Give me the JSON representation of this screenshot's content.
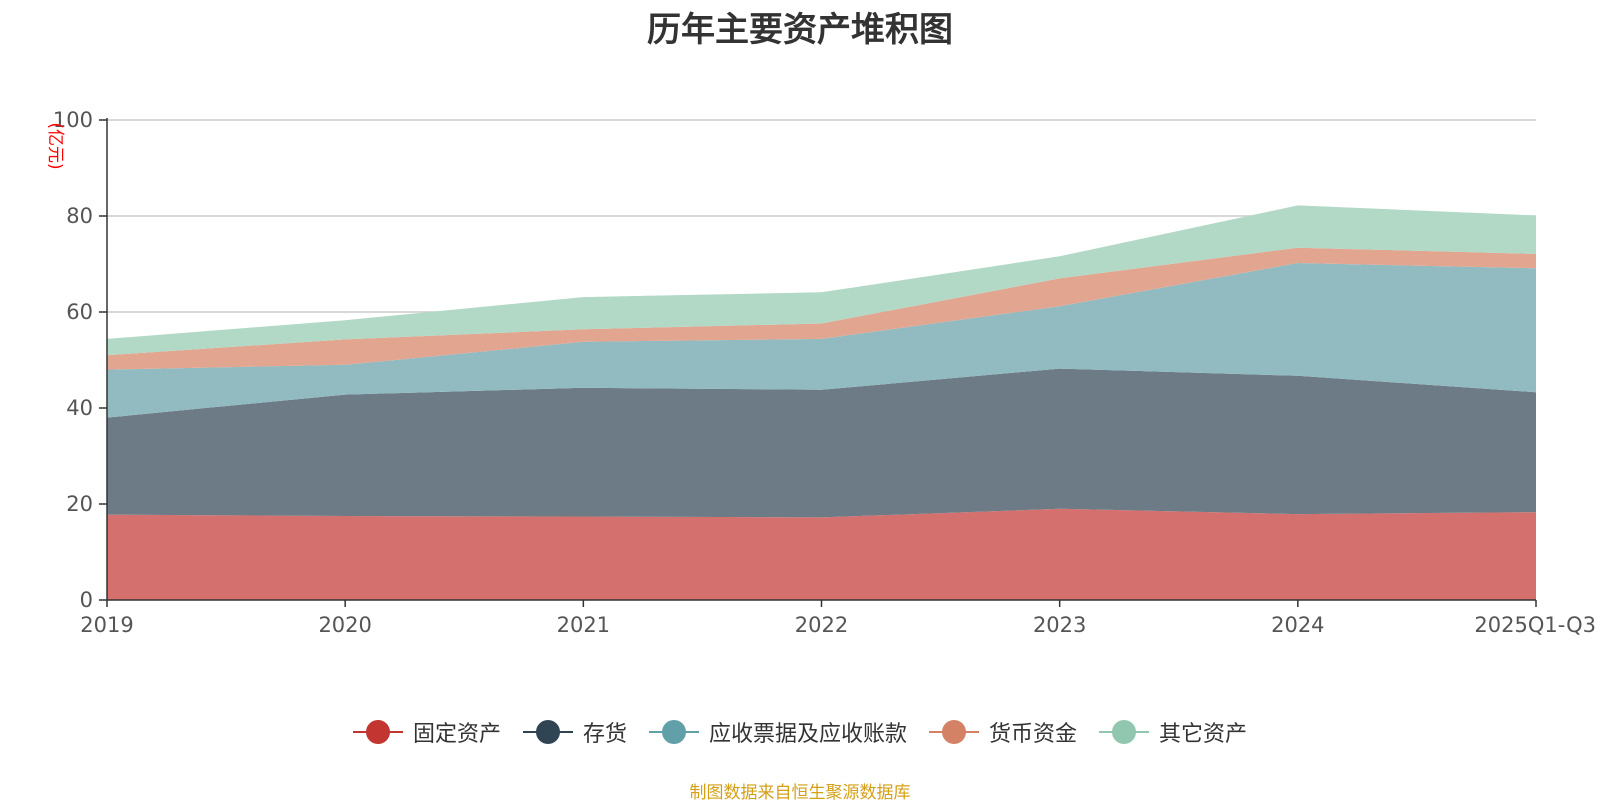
{
  "chart_data": {
    "type": "area",
    "stacked": true,
    "title": "历年主要资产堆积图",
    "ylabel": "(亿元)",
    "xlabel": "",
    "ylim": [
      0,
      100
    ],
    "yticks": [
      0,
      20,
      40,
      60,
      80,
      100
    ],
    "categories": [
      "2019",
      "2020",
      "2021",
      "2022",
      "2023",
      "2024",
      "2025Q1-Q3"
    ],
    "series": [
      {
        "name": "固定资产",
        "color": "#c23531",
        "fill": "#d4706d",
        "values": [
          17.8,
          17.5,
          17.4,
          17.2,
          19.0,
          17.9,
          18.3
        ]
      },
      {
        "name": "存货",
        "color": "#2f4554",
        "fill": "#6d7b86",
        "values": [
          20.2,
          25.3,
          26.8,
          26.6,
          29.2,
          28.8,
          25.0
        ]
      },
      {
        "name": "应收票据及应收账款",
        "color": "#61a0a8",
        "fill": "#91bbc1",
        "values": [
          10.0,
          6.2,
          9.6,
          10.6,
          13.0,
          23.5,
          25.8
        ]
      },
      {
        "name": "货币资金",
        "color": "#d48265",
        "fill": "#e2a590",
        "values": [
          3.0,
          5.3,
          2.6,
          3.2,
          5.8,
          3.2,
          3.0
        ]
      },
      {
        "name": "其它资产",
        "color": "#91c7ae",
        "fill": "#b2d8c6",
        "values": [
          3.4,
          4.0,
          6.7,
          6.5,
          4.6,
          8.8,
          8.0
        ]
      }
    ]
  },
  "legend": [
    {
      "label": "固定资产",
      "color": "#c23531"
    },
    {
      "label": "存货",
      "color": "#2f4554"
    },
    {
      "label": "应收票据及应收账款",
      "color": "#61a0a8"
    },
    {
      "label": "货币资金",
      "color": "#d48265"
    },
    {
      "label": "其它资产",
      "color": "#91c7ae"
    }
  ],
  "source": "制图数据来自恒生聚源数据库"
}
